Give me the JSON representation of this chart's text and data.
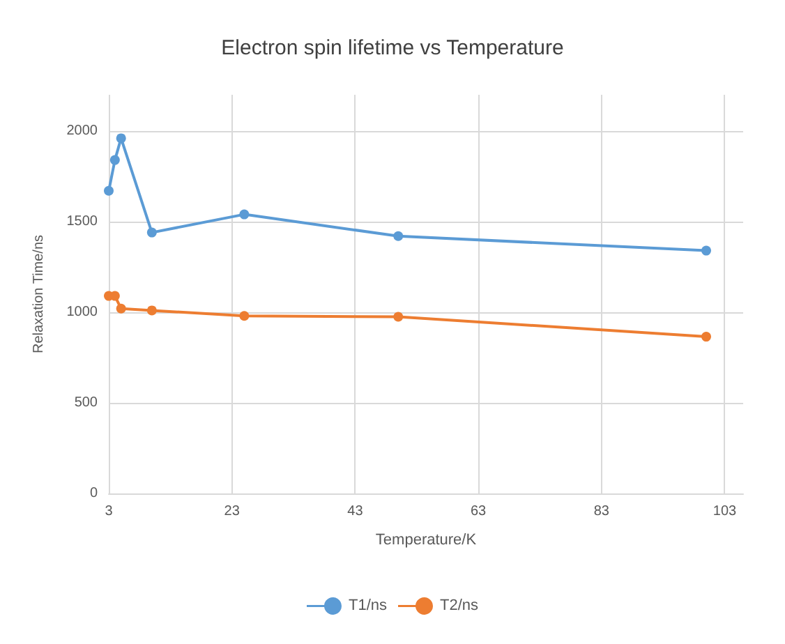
{
  "chart_data": {
    "type": "line",
    "title": "Electron spin lifetime vs Temperature",
    "xlabel": "Temperature/K",
    "ylabel": "Relaxation Time/ns",
    "x": [
      3,
      4,
      5,
      10,
      25,
      50,
      100
    ],
    "series": [
      {
        "name": "T1/ns",
        "color": "#5b9bd5",
        "values": [
          1670,
          1840,
          1960,
          1440,
          1540,
          1420,
          1340
        ]
      },
      {
        "name": "T2/ns",
        "color": "#ed7d31",
        "values": [
          1090,
          1090,
          1020,
          1010,
          980,
          975,
          865
        ]
      }
    ],
    "xlim": [
      3,
      106
    ],
    "xticks": [
      3,
      23,
      43,
      63,
      83,
      103
    ],
    "ylim": [
      0,
      2200
    ],
    "yticks": [
      0,
      500,
      1000,
      1500,
      2000
    ],
    "grid": true,
    "legend": "bottom",
    "marker": "circle",
    "line_style": "solid"
  }
}
